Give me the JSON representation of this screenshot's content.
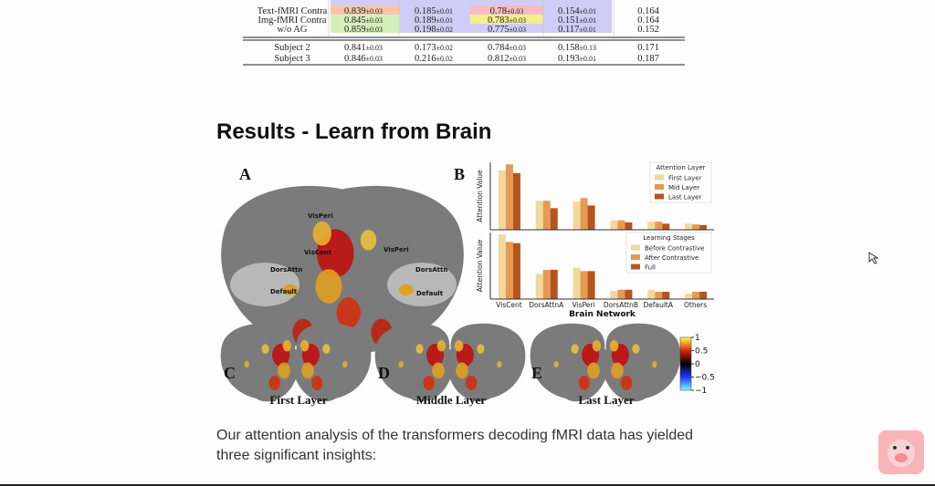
{
  "table": {
    "rows": [
      [
        "Text-fMRI Contra",
        [
          0.839,
          "±0.03"
        ],
        [
          0.185,
          "±0.01"
        ],
        [
          0.78,
          "±0.03"
        ],
        [
          0.154,
          "±0.01"
        ],
        0.164
      ],
      [
        "Img-fMRI Contra",
        [
          0.845,
          "±0.03"
        ],
        [
          0.189,
          "±0.01"
        ],
        [
          0.783,
          "±0.03"
        ],
        [
          0.151,
          "±0.01"
        ],
        0.164
      ],
      [
        "w/o AG",
        [
          0.859,
          "±0.03"
        ],
        [
          0.198,
          "±0.02"
        ],
        [
          0.775,
          "±0.03"
        ],
        [
          0.117,
          "±0.01"
        ],
        0.152
      ],
      [
        "Subject 2",
        [
          0.841,
          "±0.03"
        ],
        [
          0.173,
          "±0.02"
        ],
        [
          0.784,
          "±0.03"
        ],
        [
          0.158,
          "±0.13"
        ],
        0.171
      ],
      [
        "Subject 3",
        [
          0.846,
          "±0.03"
        ],
        [
          0.216,
          "±0.02"
        ],
        [
          0.812,
          "±0.03"
        ],
        [
          0.193,
          "±0.01"
        ],
        0.187
      ]
    ]
  },
  "heading": "Results - Learn from Brain",
  "figure": {
    "panel_labels": [
      "A",
      "B",
      "C",
      "D",
      "E"
    ],
    "region_labels": [
      "VisPeri",
      "VisCent",
      "DorsAttn",
      "Default",
      "VisPeri",
      "DorsAttn",
      "Default"
    ],
    "layer_labels": [
      "First Layer",
      "Middle Layer",
      "Last Layer"
    ],
    "colorbar": {
      "lim": [
        -1,
        1
      ],
      "ticks": [
        1,
        0.5,
        0,
        {
          "value": -0.5,
          "label": "−0.5"
        },
        {
          "value": -1,
          "label": "−1"
        }
      ]
    }
  },
  "chart_data": [
    {
      "type": "bar",
      "y_label": "Attention Value",
      "legend_title": "Attention Layer",
      "ylim": [
        0,
        1
      ],
      "series": [
        {
          "name": "First Layer",
          "color": "#f2d79e",
          "values": [
            0.88,
            0.43,
            0.42,
            0.14,
            0.12,
            0.09
          ]
        },
        {
          "name": "Mid Layer",
          "color": "#e49a52",
          "values": [
            0.97,
            0.43,
            0.47,
            0.14,
            0.12,
            0.08
          ]
        },
        {
          "name": "Last Layer",
          "color": "#b4541f",
          "values": [
            0.84,
            0.32,
            0.36,
            0.11,
            0.09,
            0.07
          ]
        }
      ]
    },
    {
      "type": "bar",
      "y_label": "Attention Value",
      "legend_title": "Learning Stages",
      "x_label": "Brain Network",
      "ylim": [
        0,
        1
      ],
      "categories": [
        "VisCent",
        "DorsAttnA",
        "VisPeri",
        "DorsAttnB",
        "DefaultA",
        "Others"
      ],
      "series": [
        {
          "name": "Before Contrastive",
          "color": "#f2d79e",
          "values": [
            0.97,
            0.38,
            0.47,
            0.12,
            0.14,
            0.08
          ]
        },
        {
          "name": "After Contrastive",
          "color": "#e49a52",
          "values": [
            0.86,
            0.44,
            0.42,
            0.14,
            0.11,
            0.11
          ]
        },
        {
          "name": "Full",
          "color": "#b4541f",
          "values": [
            0.84,
            0.44,
            0.42,
            0.14,
            0.11,
            0.11
          ]
        }
      ]
    }
  ],
  "paragraph": "Our attention analysis of the transformers decoding fMRI data has yielded three significant insights:"
}
